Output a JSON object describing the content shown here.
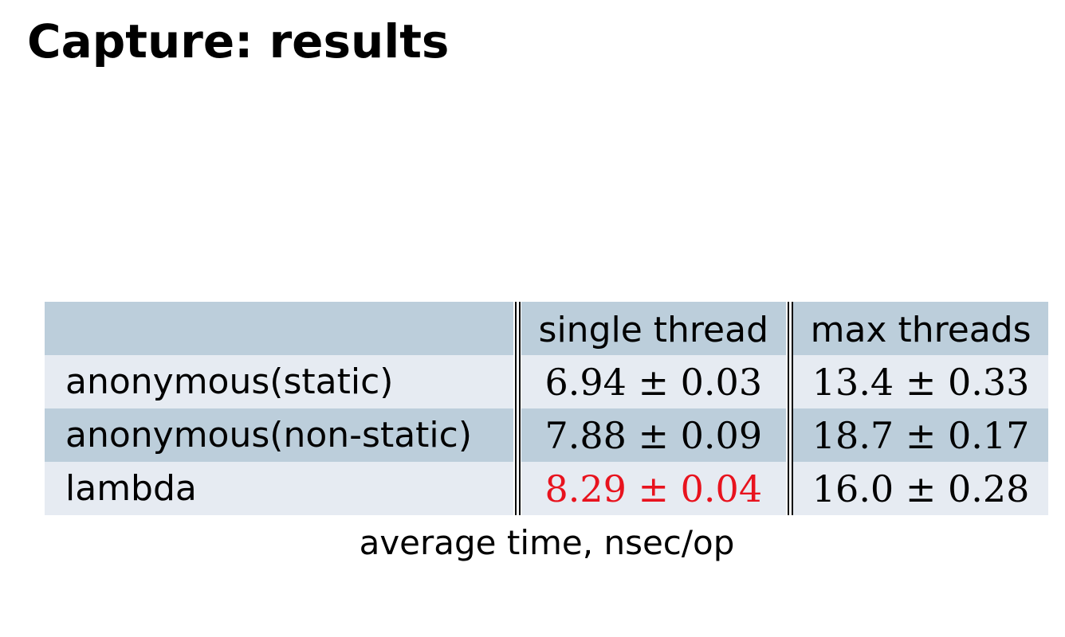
{
  "title": "Capture: results",
  "table": {
    "headers": {
      "row_label": "",
      "single_thread": "single thread",
      "max_threads": "max threads"
    },
    "rows": [
      {
        "label": "anonymous(static)",
        "single_thread": "6.94 ± 0.03",
        "max_threads": "13.4 ± 0.33",
        "single_thread_highlighted": false
      },
      {
        "label": "anonymous(non-static)",
        "single_thread": "7.88 ± 0.09",
        "max_threads": "18.7 ± 0.17",
        "single_thread_highlighted": false
      },
      {
        "label": "lambda",
        "single_thread": "8.29 ± 0.04",
        "max_threads": "16.0 ± 0.28",
        "single_thread_highlighted": true
      }
    ]
  },
  "caption": "average time, nsec/op",
  "colors": {
    "header_row_bg": "#bccedb",
    "alt_row_bg": "#e6ebf2",
    "highlight": "#e8131e"
  }
}
